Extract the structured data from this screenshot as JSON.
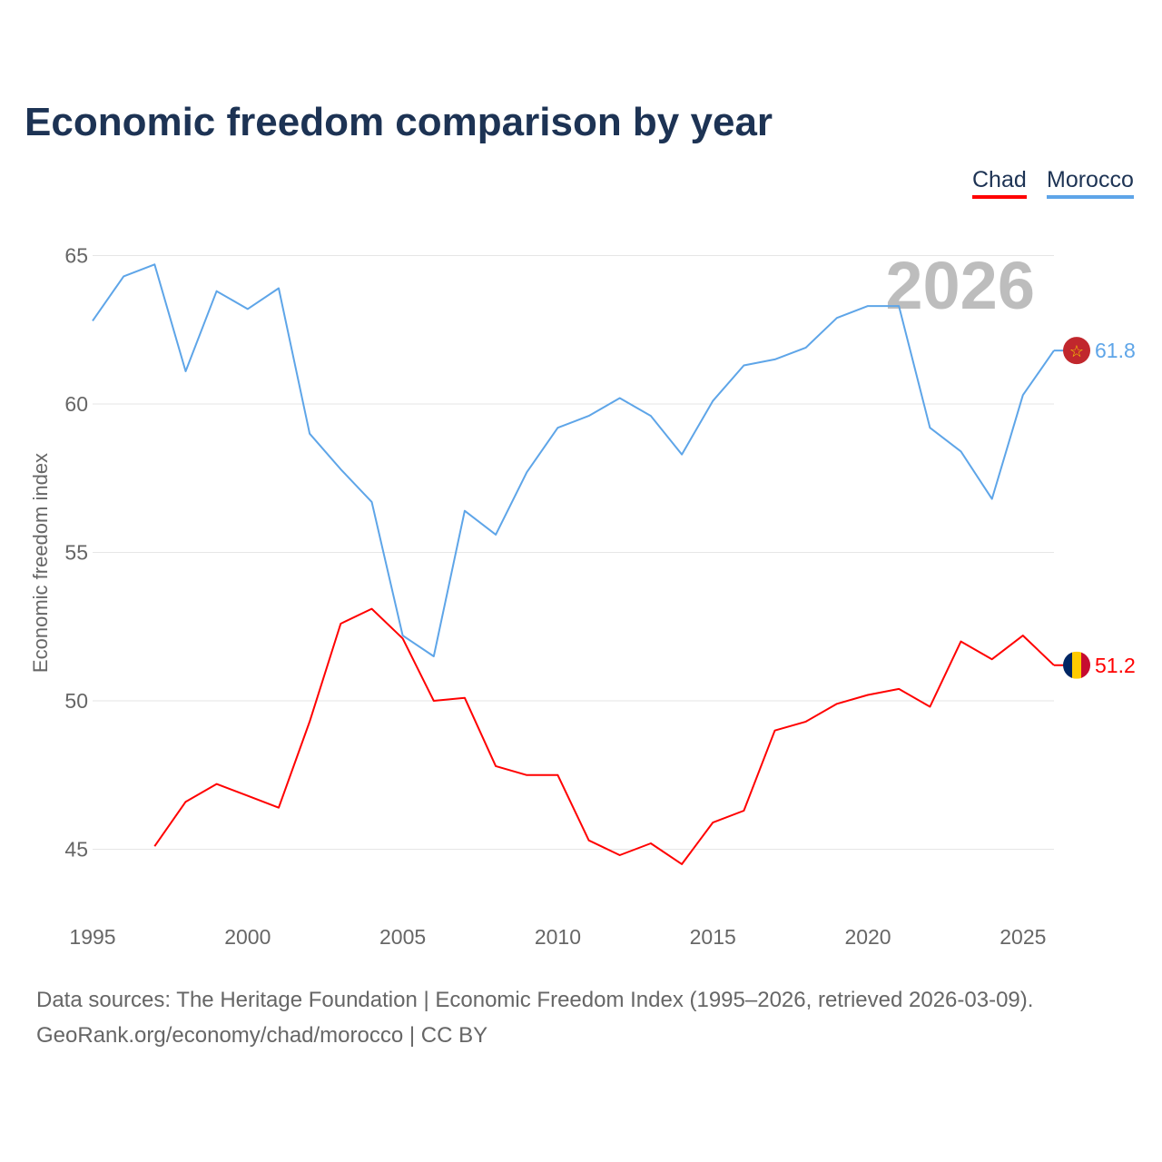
{
  "title": "Economic freedom comparison by year",
  "watermark_year": "2026",
  "footer": {
    "line1": "Data sources: The Heritage Foundation | Economic Freedom Index (1995–2026, retrieved 2026-03-09).",
    "line2": "GeoRank.org/economy/chad/morocco | CC BY"
  },
  "chart_data": {
    "type": "line",
    "title": "Economic freedom comparison by year",
    "xlabel": "",
    "ylabel": "Economic freedom index",
    "xlim": [
      1995,
      2026
    ],
    "ylim": [
      43,
      66
    ],
    "xticks": [
      "1995",
      "2000",
      "2005",
      "2010",
      "2015",
      "2020",
      "2025"
    ],
    "yticks": [
      "45",
      "50",
      "55",
      "60",
      "65"
    ],
    "grid": true,
    "legend": "top-right",
    "x": [
      1995,
      1996,
      1997,
      1998,
      1999,
      2000,
      2001,
      2002,
      2003,
      2004,
      2005,
      2006,
      2007,
      2008,
      2009,
      2010,
      2011,
      2012,
      2013,
      2014,
      2015,
      2016,
      2017,
      2018,
      2019,
      2020,
      2021,
      2022,
      2023,
      2024,
      2025,
      2026
    ],
    "series": [
      {
        "name": "Chad",
        "color": "#ff0000",
        "end_label": "51.2",
        "values": [
          null,
          null,
          45.1,
          46.6,
          47.2,
          46.8,
          46.4,
          49.3,
          52.6,
          53.1,
          52.1,
          50.0,
          50.1,
          47.8,
          47.5,
          47.5,
          45.3,
          44.8,
          45.2,
          44.5,
          45.9,
          46.3,
          49.0,
          49.3,
          49.9,
          50.2,
          50.4,
          49.8,
          52.0,
          51.4,
          52.2,
          51.2
        ]
      },
      {
        "name": "Morocco",
        "color": "#5ea5e8",
        "end_label": "61.8",
        "values": [
          62.8,
          64.3,
          64.7,
          61.1,
          63.8,
          63.2,
          63.9,
          59.0,
          57.8,
          56.7,
          52.2,
          51.5,
          56.4,
          55.6,
          57.7,
          59.2,
          59.6,
          60.2,
          59.6,
          58.3,
          60.1,
          61.3,
          61.5,
          61.9,
          62.9,
          63.3,
          63.3,
          59.2,
          58.4,
          56.8,
          60.3,
          61.8
        ]
      }
    ]
  }
}
